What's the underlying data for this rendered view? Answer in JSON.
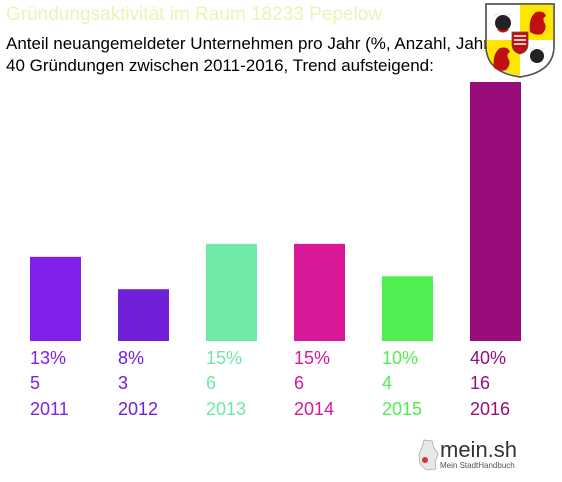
{
  "header": {
    "title": "Gründungsaktivität im Raum 18233 Pepelow",
    "subtitle_line1": "Anteil neuangemeldeter Unternehmen pro Jahr (%, Anzahl, Jahr)",
    "subtitle_line2": "40 Gründungen zwischen 2011-2016, Trend aufsteigend:"
  },
  "crest": {
    "icon": "mecklenburg-vorpommern-coat-of-arms-icon"
  },
  "logo": {
    "name": "mein.sh",
    "tagline": "Mein StadtHandbuch"
  },
  "chart_data": {
    "type": "bar",
    "categories": [
      "2011",
      "2012",
      "2013",
      "2014",
      "2015",
      "2016"
    ],
    "values": [
      13,
      8,
      15,
      15,
      10,
      40
    ],
    "percent_labels": [
      "13%",
      "8%",
      "15%",
      "15%",
      "10%",
      "40%"
    ],
    "counts": [
      "5",
      "3",
      "6",
      "6",
      "4",
      "16"
    ],
    "colors": [
      "#8020e8",
      "#7020d8",
      "#70e8a8",
      "#d81898",
      "#50ee50",
      "#980c7c"
    ],
    "ylim": [
      0,
      40
    ],
    "grid": false
  }
}
